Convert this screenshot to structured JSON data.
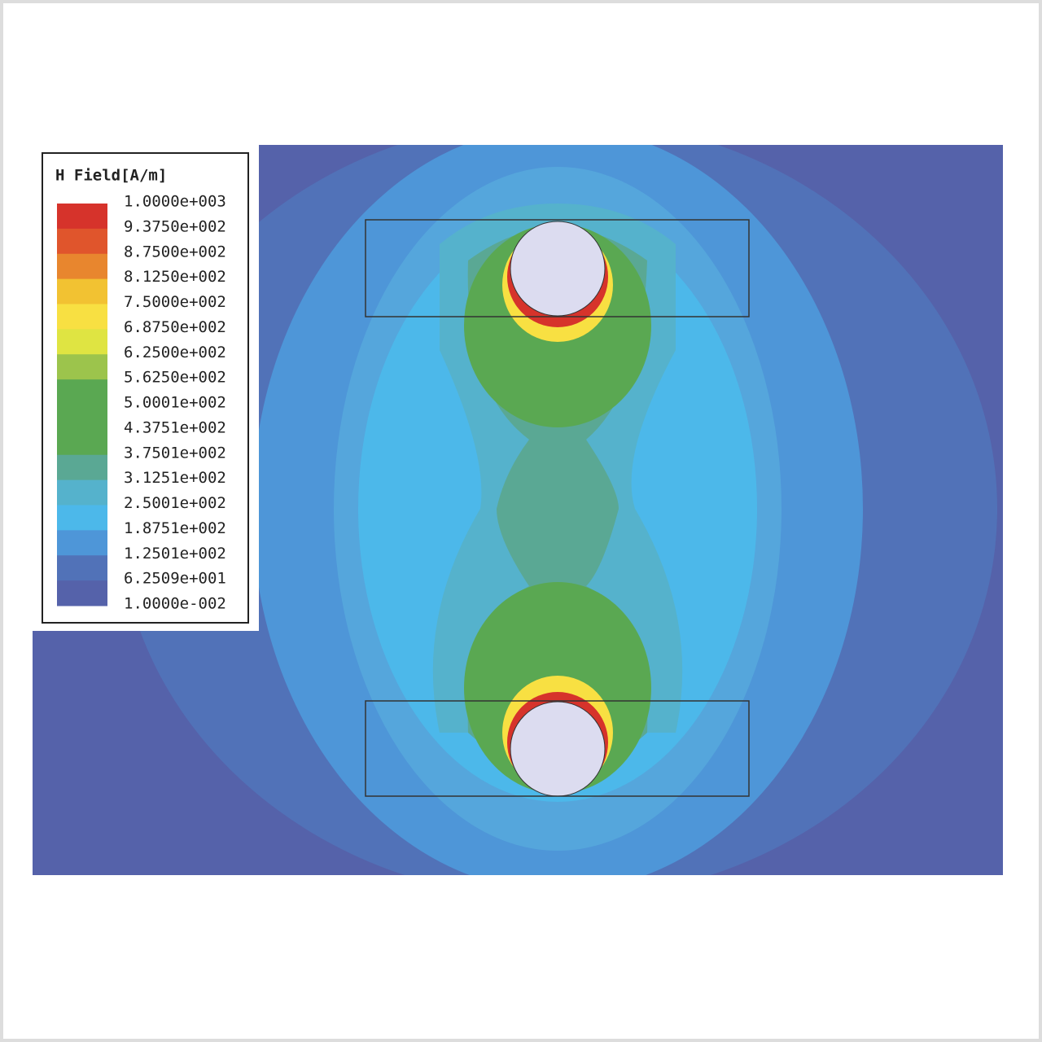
{
  "legend": {
    "title": "H Field[A/m]",
    "labels": [
      "1.0000e+003",
      "9.3750e+002",
      "8.7500e+002",
      "8.1250e+002",
      "7.5000e+002",
      "6.8750e+002",
      "6.2500e+002",
      "5.6250e+002",
      "5.0001e+002",
      "4.3751e+002",
      "3.7501e+002",
      "3.1251e+002",
      "2.5001e+002",
      "1.8751e+002",
      "1.2501e+002",
      "6.2509e+001",
      "1.0000e-002"
    ],
    "colors": [
      "#d6332b",
      "#e0552c",
      "#e8862e",
      "#f2c232",
      "#f8e042",
      "#dfe442",
      "#9cc44c",
      "#5aa852",
      "#5aa852",
      "#5aa852",
      "#5aa894",
      "#55b2cc",
      "#4cb8ea",
      "#4e96d8",
      "#5172b8",
      "#5562aa"
    ]
  }
}
